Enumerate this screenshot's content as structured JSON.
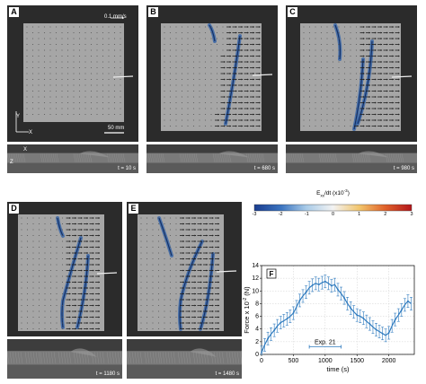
{
  "panels": [
    {
      "id": "A",
      "time": "t = 10 s",
      "speed": "0.1 mm/s",
      "scale": "50 mm",
      "axis_top_y": "Y",
      "axis_top_x": "X",
      "axis_side_x": "X",
      "axis_side_z": "Z"
    },
    {
      "id": "B",
      "time": "t = 680 s"
    },
    {
      "id": "C",
      "time": "t = 980 s"
    },
    {
      "id": "D",
      "time": "t = 1180 s"
    },
    {
      "id": "E",
      "time": "t = 1480 s"
    }
  ],
  "colorbar": {
    "title_main": "E",
    "title_sub": "xx",
    "title_rest": "/dt (x10",
    "title_exp": "-3",
    "title_end": ")",
    "ticks": [
      "-3",
      "-2",
      "-1",
      "0",
      "1",
      "2",
      "3"
    ],
    "colors": [
      "#1a3d8f",
      "#3b74c0",
      "#a9cbe8",
      "#f3f3f3",
      "#f2c46a",
      "#e0622a",
      "#b3161c"
    ]
  },
  "chart_data": {
    "type": "line",
    "panel_label": "F",
    "xlabel": "time (s)",
    "ylabel": "Force x 10",
    "ylabel_exp": "-2",
    "ylabel_unit": " (N)",
    "xlim": [
      0,
      2400
    ],
    "ylim": [
      0,
      14
    ],
    "xticks": [
      "0",
      "500",
      "1000",
      "1500",
      "2000"
    ],
    "yticks": [
      "0",
      "2",
      "4",
      "6",
      "8",
      "10",
      "12",
      "14"
    ],
    "grid": true,
    "annotation": "Exp. 21",
    "annotation_range": [
      750,
      1250
    ],
    "series": [
      {
        "color": "#2f7bbf",
        "x": [
          0,
          50,
          100,
          150,
          200,
          250,
          300,
          350,
          400,
          450,
          500,
          550,
          600,
          650,
          700,
          750,
          800,
          850,
          900,
          950,
          1000,
          1050,
          1100,
          1150,
          1200,
          1250,
          1300,
          1350,
          1400,
          1450,
          1500,
          1550,
          1600,
          1650,
          1700,
          1750,
          1800,
          1850,
          1900,
          1950,
          2000,
          2050,
          2100,
          2150,
          2200,
          2250,
          2300,
          2350
        ],
        "y": [
          0.3,
          1.5,
          2.5,
          3.2,
          3.8,
          4.5,
          5.0,
          5.3,
          5.6,
          6.0,
          6.5,
          7.5,
          8.5,
          9.2,
          9.8,
          10.5,
          10.9,
          11.2,
          11.0,
          11.3,
          11.5,
          11.2,
          10.8,
          11.0,
          10.2,
          9.6,
          8.9,
          8.0,
          7.3,
          6.7,
          6.2,
          6.0,
          5.7,
          5.2,
          4.8,
          4.3,
          3.9,
          3.6,
          3.3,
          3.0,
          3.4,
          4.5,
          5.5,
          6.2,
          7.0,
          7.8,
          8.4,
          8.0
        ],
        "error": 1.0
      }
    ]
  }
}
